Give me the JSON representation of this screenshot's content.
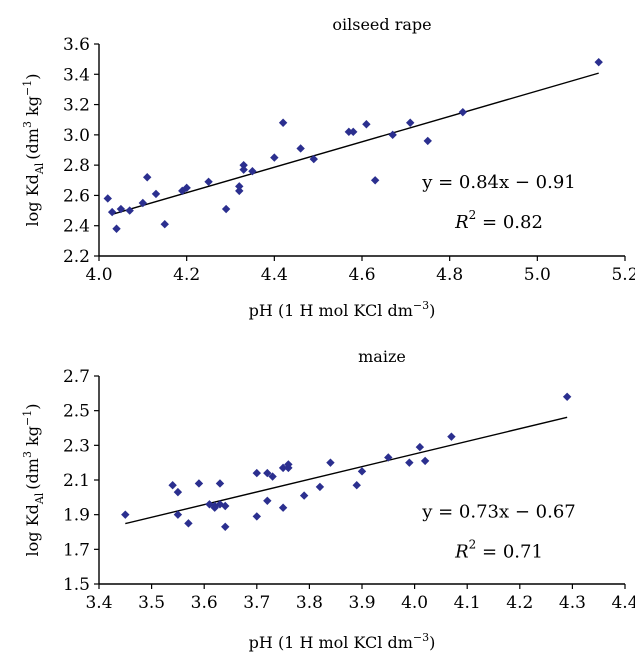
{
  "chart_data": [
    {
      "type": "scatter",
      "title": "oilseed rape",
      "xlabel": "pH (1 H mol KCl dm",
      "xlabel_sup": "−3",
      "xlabel_end": ")",
      "ylabel_main": "log Kd",
      "ylabel_sub": "Al",
      "ylabel_unit": "(dm",
      "ylabel_sup1": "3",
      "ylabel_unit2": " kg",
      "ylabel_sup2": "−1",
      "ylabel_end": ")",
      "xlim": [
        4.0,
        5.2
      ],
      "ylim": [
        2.2,
        3.6
      ],
      "xticks": [
        "4.0",
        "4.2",
        "4.4",
        "4.6",
        "4.8",
        "5.0",
        "5.2"
      ],
      "yticks": [
        "2.2",
        "2.4",
        "2.6",
        "2.8",
        "3.0",
        "3.2",
        "3.4",
        "3.6"
      ],
      "grid": false,
      "marker_color": "#2b2f8f",
      "line_color": "#000000",
      "equation": "y = 0.84x − 0.91",
      "r2_label": "R",
      "r2_sup": "2",
      "r2_value": " = 0.82",
      "fit": {
        "slope": 0.84,
        "intercept": -0.91,
        "x_range": [
          4.03,
          5.14
        ]
      },
      "points": [
        [
          4.02,
          2.58
        ],
        [
          4.03,
          2.49
        ],
        [
          4.04,
          2.38
        ],
        [
          4.05,
          2.51
        ],
        [
          4.07,
          2.5
        ],
        [
          4.1,
          2.55
        ],
        [
          4.11,
          2.72
        ],
        [
          4.13,
          2.61
        ],
        [
          4.15,
          2.41
        ],
        [
          4.19,
          2.63
        ],
        [
          4.2,
          2.65
        ],
        [
          4.25,
          2.69
        ],
        [
          4.29,
          2.51
        ],
        [
          4.32,
          2.63
        ],
        [
          4.32,
          2.66
        ],
        [
          4.33,
          2.77
        ],
        [
          4.33,
          2.8
        ],
        [
          4.35,
          2.76
        ],
        [
          4.4,
          2.85
        ],
        [
          4.42,
          3.08
        ],
        [
          4.46,
          2.91
        ],
        [
          4.49,
          2.84
        ],
        [
          4.57,
          3.02
        ],
        [
          4.58,
          3.02
        ],
        [
          4.61,
          3.07
        ],
        [
          4.63,
          2.7
        ],
        [
          4.67,
          3.0
        ],
        [
          4.71,
          3.08
        ],
        [
          4.75,
          2.96
        ],
        [
          4.83,
          3.15
        ],
        [
          5.14,
          3.48
        ]
      ]
    },
    {
      "type": "scatter",
      "title": "maize",
      "xlabel": "pH (1 H mol KCl dm",
      "xlabel_sup": "−3",
      "xlabel_end": ")",
      "ylabel_main": "log Kd",
      "ylabel_sub": "Al",
      "ylabel_unit": "(dm",
      "ylabel_sup1": "3",
      "ylabel_unit2": " kg",
      "ylabel_sup2": "−1",
      "ylabel_end": ")",
      "xlim": [
        3.4,
        4.4
      ],
      "ylim": [
        1.5,
        2.7
      ],
      "xticks": [
        "3.4",
        "3.5",
        "3.6",
        "3.7",
        "3.8",
        "3.9",
        "4.0",
        "4.1",
        "4.2",
        "4.3",
        "4.4"
      ],
      "yticks": [
        "1.5",
        "1.7",
        "1.9",
        "2.1",
        "2.3",
        "2.5",
        "2.7"
      ],
      "grid": false,
      "marker_color": "#2b2f8f",
      "line_color": "#000000",
      "equation": "y = 0.73x − 0.67",
      "r2_label": "R",
      "r2_sup": "2",
      "r2_value": " = 0.71",
      "fit": {
        "slope": 0.73,
        "intercept": -0.67,
        "x_range": [
          3.45,
          4.29
        ]
      },
      "points": [
        [
          3.45,
          1.9
        ],
        [
          3.54,
          2.07
        ],
        [
          3.55,
          2.03
        ],
        [
          3.55,
          1.9
        ],
        [
          3.57,
          1.85
        ],
        [
          3.59,
          2.08
        ],
        [
          3.61,
          1.96
        ],
        [
          3.62,
          1.95
        ],
        [
          3.62,
          1.94
        ],
        [
          3.63,
          2.08
        ],
        [
          3.63,
          1.96
        ],
        [
          3.64,
          1.95
        ],
        [
          3.64,
          1.83
        ],
        [
          3.7,
          2.14
        ],
        [
          3.7,
          1.89
        ],
        [
          3.72,
          1.98
        ],
        [
          3.72,
          2.14
        ],
        [
          3.73,
          2.12
        ],
        [
          3.75,
          2.17
        ],
        [
          3.75,
          1.94
        ],
        [
          3.76,
          2.17
        ],
        [
          3.76,
          2.19
        ],
        [
          3.79,
          2.01
        ],
        [
          3.82,
          2.06
        ],
        [
          3.84,
          2.2
        ],
        [
          3.89,
          2.07
        ],
        [
          3.9,
          2.15
        ],
        [
          3.95,
          2.23
        ],
        [
          3.99,
          2.2
        ],
        [
          4.01,
          2.29
        ],
        [
          4.02,
          2.21
        ],
        [
          4.07,
          2.35
        ],
        [
          4.29,
          2.58
        ]
      ]
    }
  ]
}
